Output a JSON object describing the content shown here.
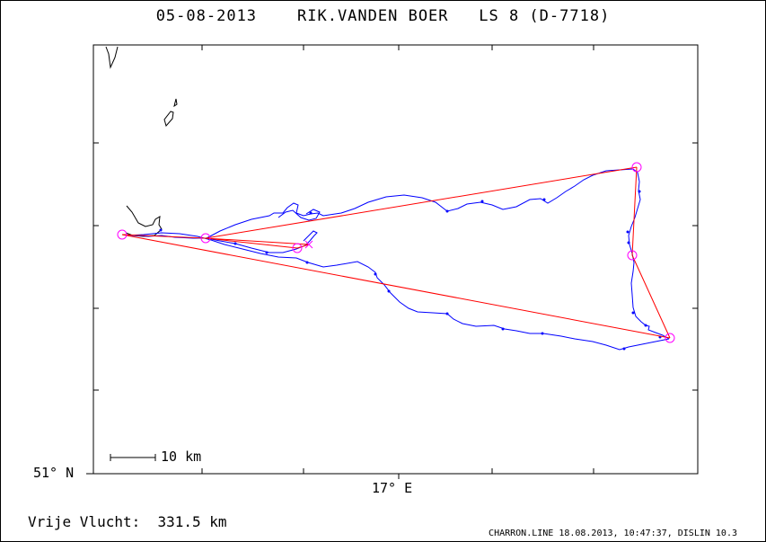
{
  "header": {
    "date": "05-08-2013",
    "pilot": "RIK.VANDEN BOER",
    "glider": "LS 8 (D-7718)"
  },
  "axes": {
    "lat_label": "51° N",
    "lon_label": "17° E"
  },
  "scale": {
    "label": "10 km"
  },
  "distance": {
    "label": "Vrije Vlucht:",
    "value": "331.5 km"
  },
  "footer": {
    "credit": "CHARRON.LINE 18.08.2013, 10:47:37, DISLIN 10.3"
  },
  "colors": {
    "track": "#0000ff",
    "task": "#ff0000",
    "turnpoint": "#ff00ff",
    "frame": "#000000"
  }
}
